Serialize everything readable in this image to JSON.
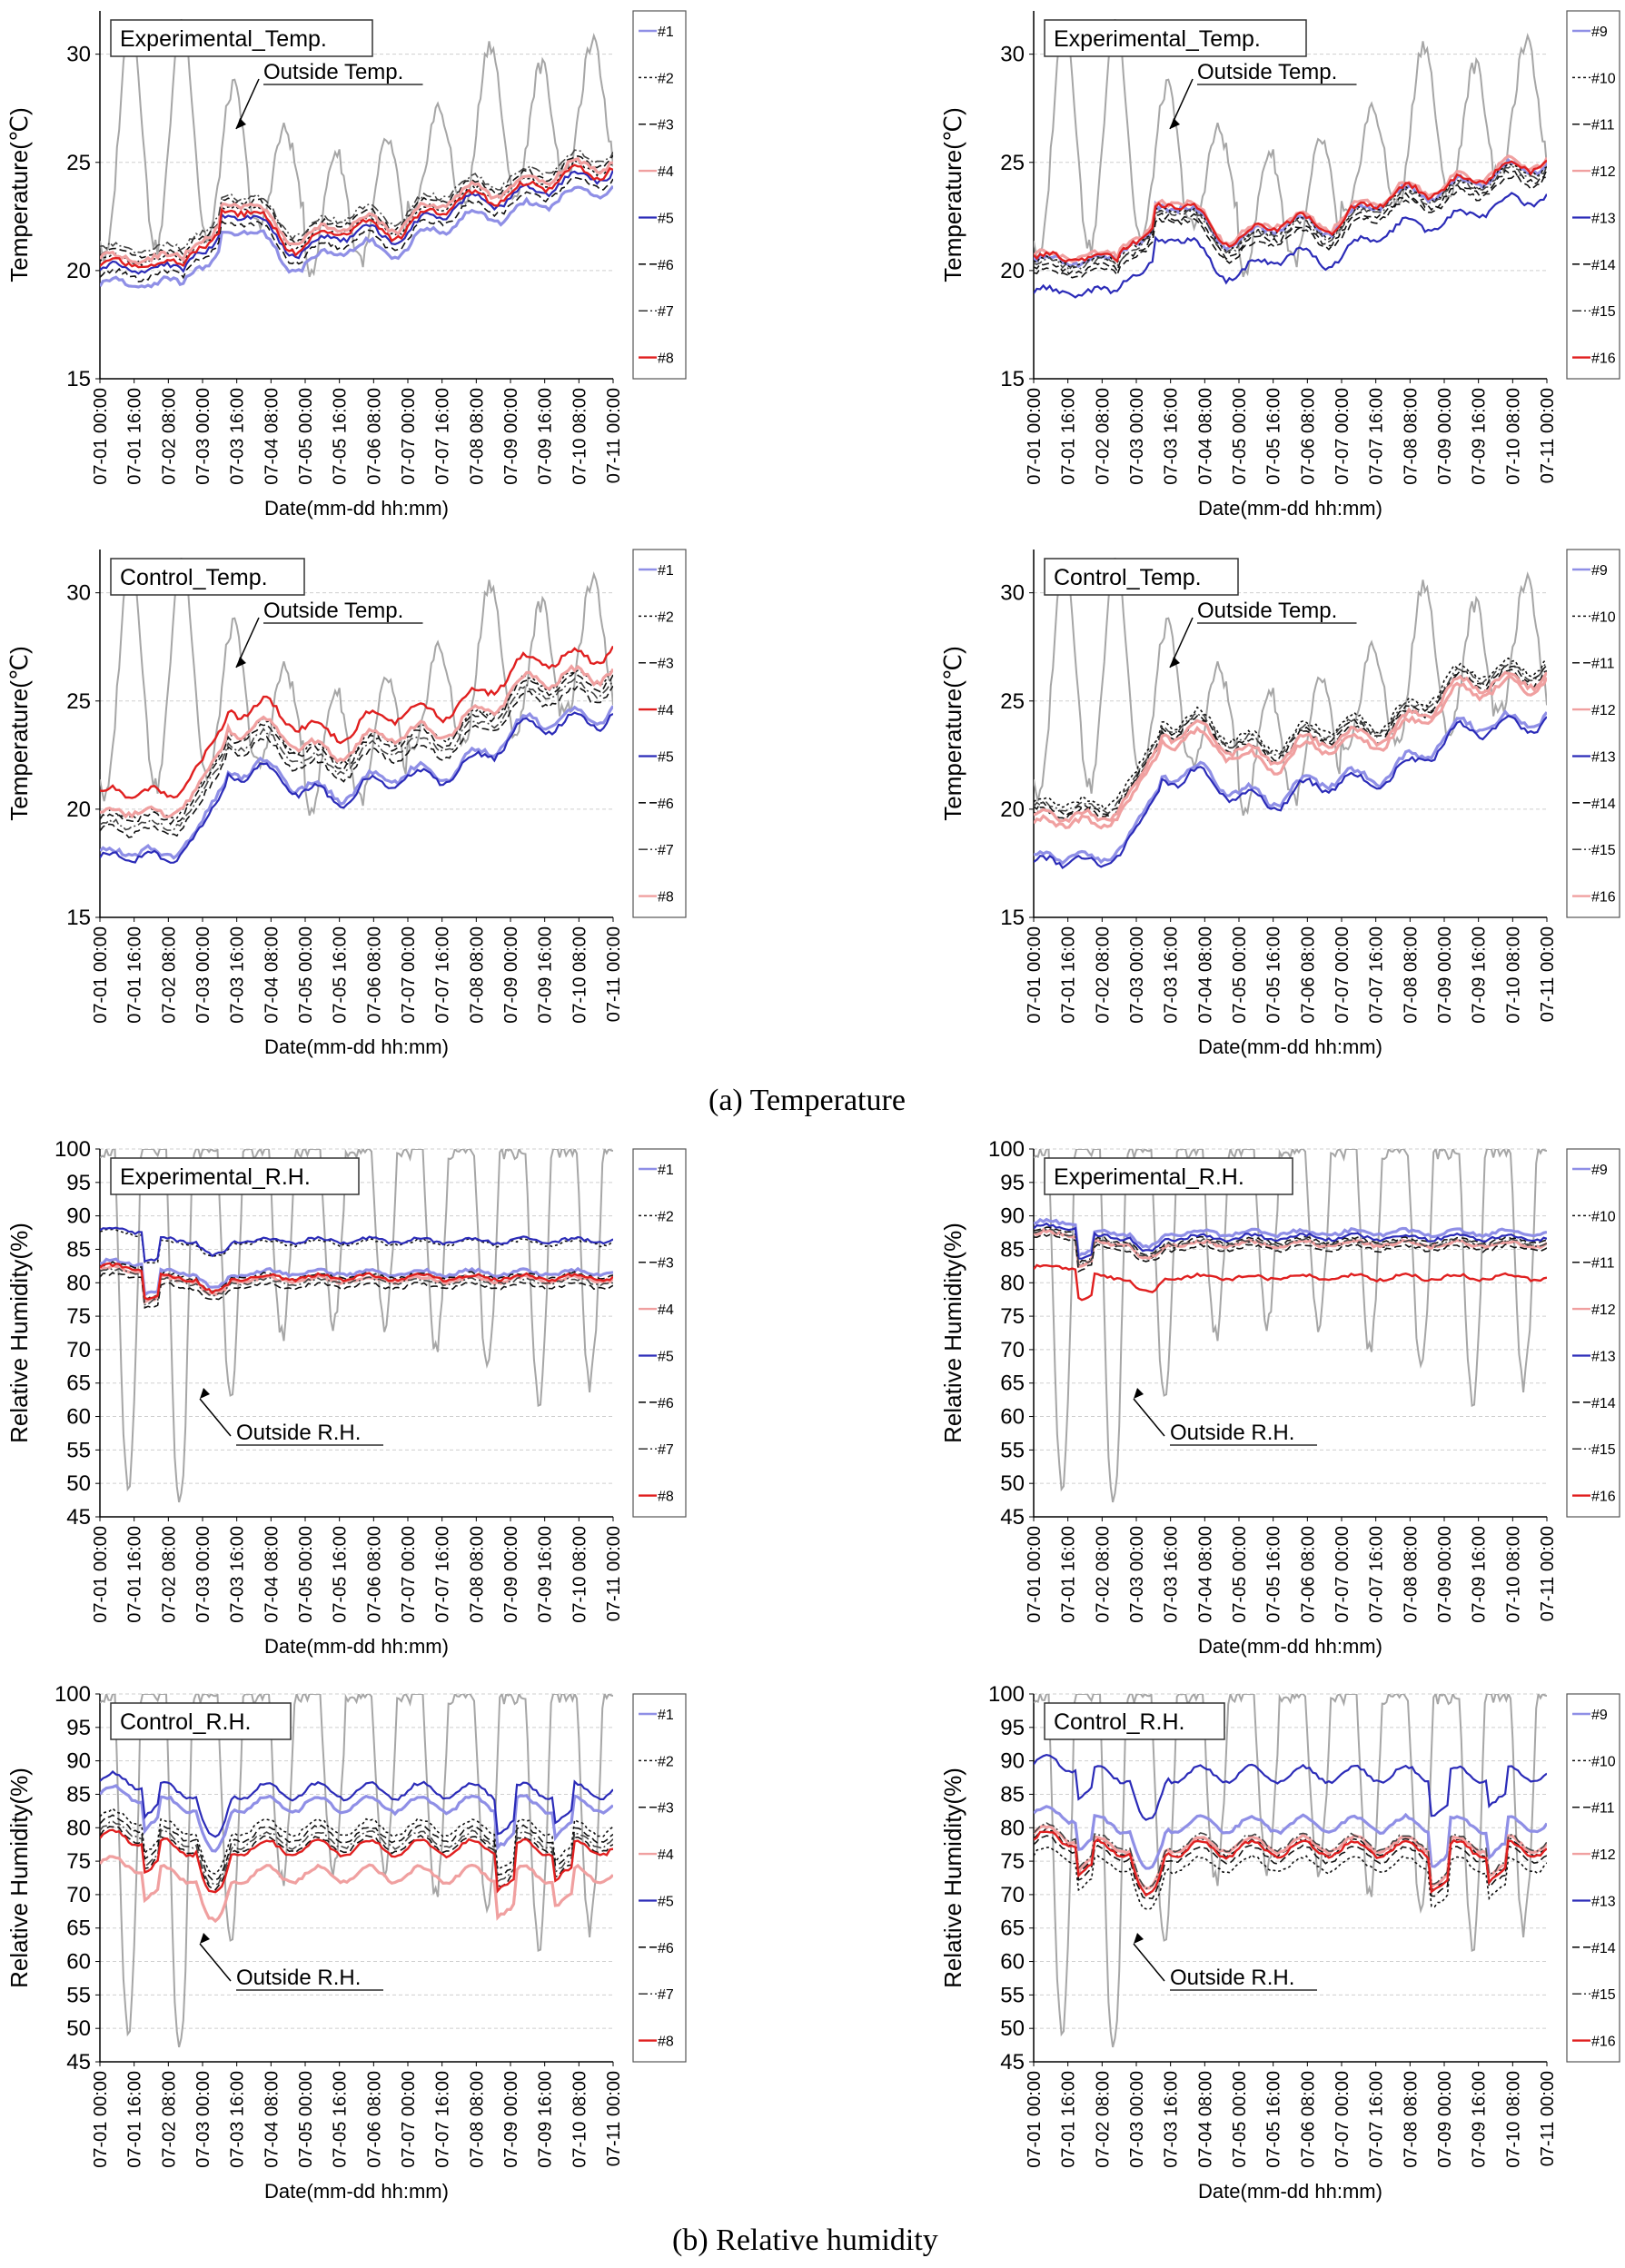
{
  "figure": {
    "caption_a": "(a)  Temperature",
    "caption_b": "(b)  Relative  humidity"
  },
  "colors": {
    "outside": "#a6a6a6",
    "grid": "#cfcfcf",
    "blue": "#2b2bb8",
    "light_blue": "#8f8fe6",
    "red": "#e01f1f",
    "light_red": "#f0a0a0",
    "black": "#111111",
    "dark_gray": "#444444"
  },
  "chart_data": [
    {
      "id": "temp_exp_1_8",
      "type": "line",
      "kind": "temp",
      "variant": "exp",
      "set": 1,
      "title": "Experimental_Temp.",
      "annotation": "Outside Temp.",
      "xlabel": "Date(mm-dd hh:mm)",
      "ylabel": "Temperature(℃)",
      "ylim": [
        15,
        32
      ],
      "yticks": [
        15,
        20,
        25,
        30
      ],
      "x_ticks": [
        "07-01 00:00",
        "07-01 16:00",
        "07-02 08:00",
        "07-03 00:00",
        "07-03 16:00",
        "07-04 08:00",
        "07-05 00:00",
        "07-05 16:00",
        "07-06 08:00",
        "07-07 00:00",
        "07-07 16:00",
        "07-08 08:00",
        "07-09 00:00",
        "07-09 16:00",
        "07-10 08:00",
        "07-11 00:00"
      ],
      "legend": [
        "#1",
        "#2",
        "#3",
        "#4",
        "#5",
        "#6",
        "#7",
        "#8"
      ],
      "series": [
        {
          "name": "#1",
          "style": "light_blue",
          "offset": -0.9
        },
        {
          "name": "#2",
          "style": "black_dot",
          "offset": 0.2
        },
        {
          "name": "#3",
          "style": "black_dash",
          "offset": 0.5
        },
        {
          "name": "#4",
          "style": "light_red",
          "offset": 0.3
        },
        {
          "name": "#5",
          "style": "blue",
          "offset": -0.2
        },
        {
          "name": "#6",
          "style": "black_dash",
          "offset": -0.5
        },
        {
          "name": "#7",
          "style": "dark_dash",
          "offset": 0.7
        },
        {
          "name": "#8",
          "style": "red",
          "offset": 0.0
        }
      ]
    },
    {
      "id": "temp_exp_9_16",
      "type": "line",
      "kind": "temp",
      "variant": "exp",
      "set": 2,
      "title": "Experimental_Temp.",
      "annotation": "Outside Temp.",
      "xlabel": "Date(mm-dd hh:mm)",
      "ylabel": "Temperature(℃)",
      "ylim": [
        15,
        32
      ],
      "yticks": [
        15,
        20,
        25,
        30
      ],
      "x_ticks": [
        "07-01 00:00",
        "07-01 16:00",
        "07-02 08:00",
        "07-03 00:00",
        "07-03 16:00",
        "07-04 08:00",
        "07-05 00:00",
        "07-05 16:00",
        "07-06 08:00",
        "07-07 00:00",
        "07-07 16:00",
        "07-08 08:00",
        "07-09 00:00",
        "07-09 16:00",
        "07-10 08:00",
        "07-11 00:00"
      ],
      "legend": [
        "#9",
        "#10",
        "#11",
        "#12",
        "#13",
        "#14",
        "#15",
        "#16"
      ],
      "series": [
        {
          "name": "#9",
          "style": "light_blue",
          "offset": 0.2
        },
        {
          "name": "#10",
          "style": "black_dot",
          "offset": 0.1
        },
        {
          "name": "#11",
          "style": "black_dash",
          "offset": -0.2
        },
        {
          "name": "#12",
          "style": "light_red",
          "offset": 0.4
        },
        {
          "name": "#13",
          "style": "blue",
          "offset": -1.3
        },
        {
          "name": "#14",
          "style": "black_dash",
          "offset": -0.4
        },
        {
          "name": "#15",
          "style": "dark_dash",
          "offset": 0.0
        },
        {
          "name": "#16",
          "style": "red",
          "offset": 0.3
        }
      ]
    },
    {
      "id": "temp_ctl_1_8",
      "type": "line",
      "kind": "temp",
      "variant": "ctl",
      "set": 1,
      "title": "Control_Temp.",
      "annotation": "Outside Temp.",
      "xlabel": "Date(mm-dd hh:mm)",
      "ylabel": "Temperature(℃)",
      "ylim": [
        15,
        32
      ],
      "yticks": [
        15,
        20,
        25,
        30
      ],
      "x_ticks": [
        "07-01 00:00",
        "07-01 16:00",
        "07-02 08:00",
        "07-03 00:00",
        "07-03 16:00",
        "07-04 08:00",
        "07-05 00:00",
        "07-05 16:00",
        "07-06 08:00",
        "07-07 00:00",
        "07-07 16:00",
        "07-08 08:00",
        "07-09 00:00",
        "07-09 16:00",
        "07-10 08:00",
        "07-11 00:00"
      ],
      "legend": [
        "#1",
        "#2",
        "#3",
        "#4",
        "#5",
        "#6",
        "#7",
        "#8"
      ],
      "series": [
        {
          "name": "#1",
          "style": "light_blue",
          "offset": -1.6
        },
        {
          "name": "#2",
          "style": "black_dot",
          "offset": 0.2
        },
        {
          "name": "#3",
          "style": "black_dash",
          "offset": 0.0
        },
        {
          "name": "#4",
          "style": "red",
          "offset": 1.2
        },
        {
          "name": "#5",
          "style": "blue",
          "offset": -1.8
        },
        {
          "name": "#6",
          "style": "black_dash",
          "offset": -0.6
        },
        {
          "name": "#7",
          "style": "dark_dash",
          "offset": -0.3
        },
        {
          "name": "#8",
          "style": "light_red",
          "offset": 0.3
        }
      ]
    },
    {
      "id": "temp_ctl_9_16",
      "type": "line",
      "kind": "temp",
      "variant": "ctl",
      "set": 2,
      "title": "Control_Temp.",
      "annotation": "Outside Temp.",
      "xlabel": "Date(mm-dd hh:mm)",
      "ylabel": "Temperature(℃)",
      "ylim": [
        15,
        32
      ],
      "yticks": [
        15,
        20,
        25,
        30
      ],
      "x_ticks": [
        "07-01 00:00",
        "07-01 16:00",
        "07-02 08:00",
        "07-03 00:00",
        "07-03 16:00",
        "07-04 08:00",
        "07-05 00:00",
        "07-05 16:00",
        "07-06 08:00",
        "07-07 00:00",
        "07-07 16:00",
        "07-08 08:00",
        "07-09 00:00",
        "07-09 16:00",
        "07-10 08:00",
        "07-11 00:00"
      ],
      "legend": [
        "#9",
        "#10",
        "#11",
        "#12",
        "#13",
        "#14",
        "#15",
        "#16"
      ],
      "series": [
        {
          "name": "#9",
          "style": "light_blue",
          "offset": -1.8
        },
        {
          "name": "#10",
          "style": "black_dot",
          "offset": 0.7
        },
        {
          "name": "#11",
          "style": "black_dash",
          "offset": 0.4
        },
        {
          "name": "#12",
          "style": "light_red",
          "offset": -0.2
        },
        {
          "name": "#13",
          "style": "blue",
          "offset": -2.0
        },
        {
          "name": "#14",
          "style": "black_dash",
          "offset": 0.2
        },
        {
          "name": "#15",
          "style": "dark_dash",
          "offset": 0.5
        },
        {
          "name": "#16",
          "style": "light_red",
          "offset": 0.1
        }
      ]
    },
    {
      "id": "rh_exp_1_8",
      "type": "line",
      "kind": "rh",
      "variant": "exp",
      "set": 1,
      "title": "Experimental_R.H.",
      "annotation": "Outside R.H.",
      "xlabel": "Date(mm-dd hh:mm)",
      "ylabel": "Relative Humidity(%)",
      "ylim": [
        45,
        100
      ],
      "yticks": [
        45,
        50,
        55,
        60,
        65,
        70,
        75,
        80,
        85,
        90,
        95,
        100
      ],
      "x_ticks": [
        "07-01 00:00",
        "07-01 16:00",
        "07-02 08:00",
        "07-03 00:00",
        "07-03 16:00",
        "07-04 08:00",
        "07-05 00:00",
        "07-05 16:00",
        "07-06 08:00",
        "07-07 00:00",
        "07-07 16:00",
        "07-08 08:00",
        "07-09 00:00",
        "07-09 16:00",
        "07-10 08:00",
        "07-11 00:00"
      ],
      "legend": [
        "#1",
        "#2",
        "#3",
        "#4",
        "#5",
        "#6",
        "#7",
        "#8"
      ],
      "series": [
        {
          "name": "#1",
          "style": "light_blue",
          "offset": 81.5
        },
        {
          "name": "#2",
          "style": "black_dot",
          "offset": 86.0
        },
        {
          "name": "#3",
          "style": "black_dash",
          "offset": 81.0
        },
        {
          "name": "#4",
          "style": "light_red",
          "offset": 80.5
        },
        {
          "name": "#5",
          "style": "blue",
          "offset": 86.3
        },
        {
          "name": "#6",
          "style": "black_dash",
          "offset": 79.5
        },
        {
          "name": "#7",
          "style": "dark_dash",
          "offset": 80.2
        },
        {
          "name": "#8",
          "style": "red",
          "offset": 80.8
        }
      ]
    },
    {
      "id": "rh_exp_9_16",
      "type": "line",
      "kind": "rh",
      "variant": "exp",
      "set": 2,
      "title": "Experimental_R.H.",
      "annotation": "Outside R.H.",
      "xlabel": "Date(mm-dd hh:mm)",
      "ylabel": "Relative Humidity(%)",
      "ylim": [
        45,
        100
      ],
      "yticks": [
        45,
        50,
        55,
        60,
        65,
        70,
        75,
        80,
        85,
        90,
        95,
        100
      ],
      "x_ticks": [
        "07-01 00:00",
        "07-01 16:00",
        "07-02 08:00",
        "07-03 00:00",
        "07-03 16:00",
        "07-04 08:00",
        "07-05 00:00",
        "07-05 16:00",
        "07-06 08:00",
        "07-07 00:00",
        "07-07 16:00",
        "07-08 08:00",
        "07-09 00:00",
        "07-09 16:00",
        "07-10 08:00",
        "07-11 00:00"
      ],
      "legend": [
        "#9",
        "#10",
        "#11",
        "#12",
        "#13",
        "#14",
        "#15",
        "#16"
      ],
      "series": [
        {
          "name": "#9",
          "style": "light_blue",
          "offset": 87.5
        },
        {
          "name": "#10",
          "style": "black_dot",
          "offset": 85.8
        },
        {
          "name": "#11",
          "style": "black_dash",
          "offset": 86.3
        },
        {
          "name": "#12",
          "style": "light_red",
          "offset": 85.8
        },
        {
          "name": "#13",
          "style": "blue",
          "offset": 86.8
        },
        {
          "name": "#14",
          "style": "black_dash",
          "offset": 85.2
        },
        {
          "name": "#15",
          "style": "dark_dash",
          "offset": 86.0
        },
        {
          "name": "#16",
          "style": "red",
          "offset": 80.8
        }
      ]
    },
    {
      "id": "rh_ctl_1_8",
      "type": "line",
      "kind": "rh",
      "variant": "ctl",
      "set": 1,
      "title": "Control_R.H.",
      "annotation": "Outside R.H.",
      "xlabel": "Date(mm-dd hh:mm)",
      "ylabel": "Relative Humidity(%)",
      "ylim": [
        45,
        100
      ],
      "yticks": [
        45,
        50,
        55,
        60,
        65,
        70,
        75,
        80,
        85,
        90,
        95,
        100
      ],
      "x_ticks": [
        "07-01 00:00",
        "07-01 16:00",
        "07-02 08:00",
        "07-03 00:00",
        "07-03 16:00",
        "07-04 08:00",
        "07-05 00:00",
        "07-05 16:00",
        "07-06 08:00",
        "07-07 00:00",
        "07-07 16:00",
        "07-08 08:00",
        "07-09 00:00",
        "07-09 16:00",
        "07-10 08:00",
        "07-11 00:00"
      ],
      "legend": [
        "#1",
        "#2",
        "#3",
        "#4",
        "#5",
        "#6",
        "#7",
        "#8"
      ],
      "series": [
        {
          "name": "#1",
          "style": "light_blue",
          "offset": 83.5
        },
        {
          "name": "#2",
          "style": "black_dot",
          "offset": 80.0
        },
        {
          "name": "#3",
          "style": "black_dash",
          "offset": 79.0
        },
        {
          "name": "#4",
          "style": "light_red",
          "offset": 73.0
        },
        {
          "name": "#5",
          "style": "blue",
          "offset": 85.5
        },
        {
          "name": "#6",
          "style": "black_dash",
          "offset": 77.5
        },
        {
          "name": "#7",
          "style": "dark_dash",
          "offset": 78.2
        },
        {
          "name": "#8",
          "style": "red",
          "offset": 77.0
        }
      ]
    },
    {
      "id": "rh_ctl_9_16",
      "type": "line",
      "kind": "rh",
      "variant": "ctl",
      "set": 2,
      "title": "Control_R.H.",
      "annotation": "Outside R.H.",
      "xlabel": "Date(mm-dd hh:mm)",
      "ylabel": "Relative Humidity(%)",
      "ylim": [
        45,
        100
      ],
      "yticks": [
        45,
        50,
        55,
        60,
        65,
        70,
        75,
        80,
        85,
        90,
        95,
        100
      ],
      "x_ticks": [
        "07-01 00:00",
        "07-01 16:00",
        "07-02 08:00",
        "07-03 00:00",
        "07-03 16:00",
        "07-04 08:00",
        "07-05 00:00",
        "07-05 16:00",
        "07-06 08:00",
        "07-07 00:00",
        "07-07 16:00",
        "07-08 08:00",
        "07-09 00:00",
        "07-09 16:00",
        "07-10 08:00",
        "07-11 00:00"
      ],
      "legend": [
        "#9",
        "#10",
        "#11",
        "#12",
        "#13",
        "#14",
        "#15",
        "#16"
      ],
      "series": [
        {
          "name": "#9",
          "style": "light_blue",
          "offset": 80.5
        },
        {
          "name": "#10",
          "style": "black_dot",
          "offset": 74.5
        },
        {
          "name": "#11",
          "style": "black_dash",
          "offset": 77.0
        },
        {
          "name": "#12",
          "style": "light_red",
          "offset": 77.5
        },
        {
          "name": "#13",
          "style": "blue",
          "offset": 88.0
        },
        {
          "name": "#14",
          "style": "black_dash",
          "offset": 76.0
        },
        {
          "name": "#15",
          "style": "dark_dash",
          "offset": 77.8
        },
        {
          "name": "#16",
          "style": "red",
          "offset": 76.8
        }
      ]
    }
  ]
}
